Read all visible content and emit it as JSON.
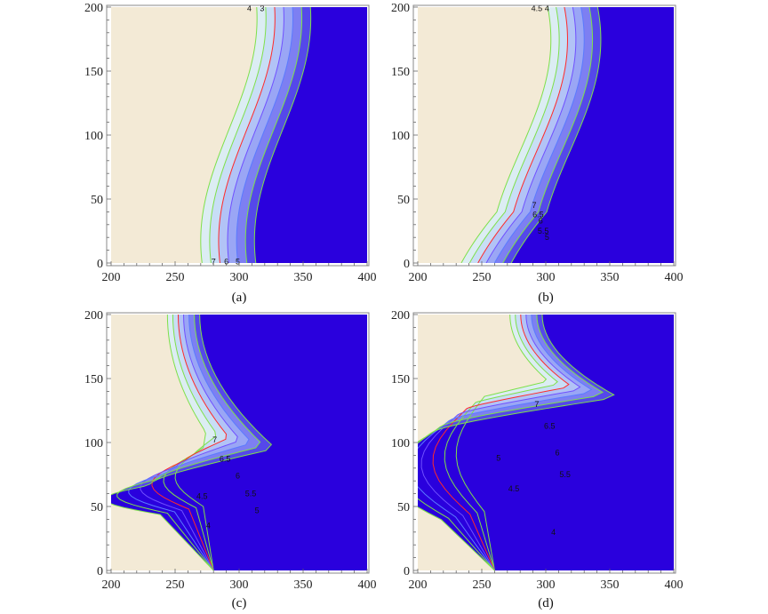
{
  "chart_data": [
    {
      "type": "contour",
      "caption": "(a)",
      "xlim": [
        200,
        400
      ],
      "ylim": [
        0,
        200
      ],
      "x_ticks": [
        "200",
        "250",
        "300",
        "350",
        "400"
      ],
      "y_ticks": [
        "0",
        "50",
        "100",
        "150",
        "200"
      ],
      "contour_labels": [
        {
          "text": "7",
          "x": 280,
          "y": 1
        },
        {
          "text": "6",
          "x": 290,
          "y": 1
        },
        {
          "text": "5",
          "x": 299,
          "y": 1
        },
        {
          "text": "4",
          "x": 308,
          "y": 199
        },
        {
          "text": "3",
          "x": 318,
          "y": 199
        }
      ]
    },
    {
      "type": "contour",
      "caption": "(b)",
      "xlim": [
        200,
        400
      ],
      "ylim": [
        0,
        200
      ],
      "x_ticks": [
        "200",
        "250",
        "300",
        "350",
        "400"
      ],
      "y_ticks": [
        "0",
        "50",
        "100",
        "150",
        "200"
      ],
      "contour_labels": [
        {
          "text": "4.5",
          "x": 293,
          "y": 199
        },
        {
          "text": "4",
          "x": 301,
          "y": 199
        },
        {
          "text": "7",
          "x": 291,
          "y": 45
        },
        {
          "text": "6.5",
          "x": 294,
          "y": 38
        },
        {
          "text": "6",
          "x": 296,
          "y": 33
        },
        {
          "text": "5.5",
          "x": 298,
          "y": 25
        },
        {
          "text": "5",
          "x": 301,
          "y": 20
        }
      ]
    },
    {
      "type": "contour",
      "caption": "(c)",
      "xlim": [
        200,
        400
      ],
      "ylim": [
        0,
        200
      ],
      "x_ticks": [
        "200",
        "250",
        "300",
        "350",
        "400"
      ],
      "y_ticks": [
        "0",
        "50",
        "100",
        "150",
        "200"
      ],
      "contour_labels": [
        {
          "text": "7",
          "x": 281,
          "y": 102
        },
        {
          "text": "6.5",
          "x": 289,
          "y": 87
        },
        {
          "text": "6",
          "x": 299,
          "y": 74
        },
        {
          "text": "5.5",
          "x": 309,
          "y": 60
        },
        {
          "text": "5",
          "x": 314,
          "y": 47
        },
        {
          "text": "4.5",
          "x": 271,
          "y": 58
        },
        {
          "text": "4",
          "x": 276,
          "y": 35
        }
      ]
    },
    {
      "type": "contour",
      "caption": "(d)",
      "xlim": [
        200,
        400
      ],
      "ylim": [
        0,
        200
      ],
      "x_ticks": [
        "200",
        "250",
        "300",
        "350",
        "400"
      ],
      "y_ticks": [
        "0",
        "50",
        "100",
        "150",
        "200"
      ],
      "contour_labels": [
        {
          "text": "7",
          "x": 293,
          "y": 130
        },
        {
          "text": "6.5",
          "x": 303,
          "y": 113
        },
        {
          "text": "6",
          "x": 309,
          "y": 92
        },
        {
          "text": "5.5",
          "x": 315,
          "y": 75
        },
        {
          "text": "5",
          "x": 263,
          "y": 88
        },
        {
          "text": "4.5",
          "x": 275,
          "y": 64
        },
        {
          "text": "4",
          "x": 306,
          "y": 30
        }
      ]
    }
  ],
  "colors": {
    "low_region": "#f3ead6",
    "high_region": "#2a00dd",
    "band_1": "#dcedf3",
    "band_2": "#c8def6",
    "band_3": "#b2c3f6",
    "band_4": "#9aa6f5",
    "band_5": "#7d7ff2",
    "band_6": "#5548ea",
    "line_green": "#7fe04a",
    "line_red": "#ff2a2a",
    "line_blue": "#5b7bff",
    "line_violet": "#7050ff"
  }
}
